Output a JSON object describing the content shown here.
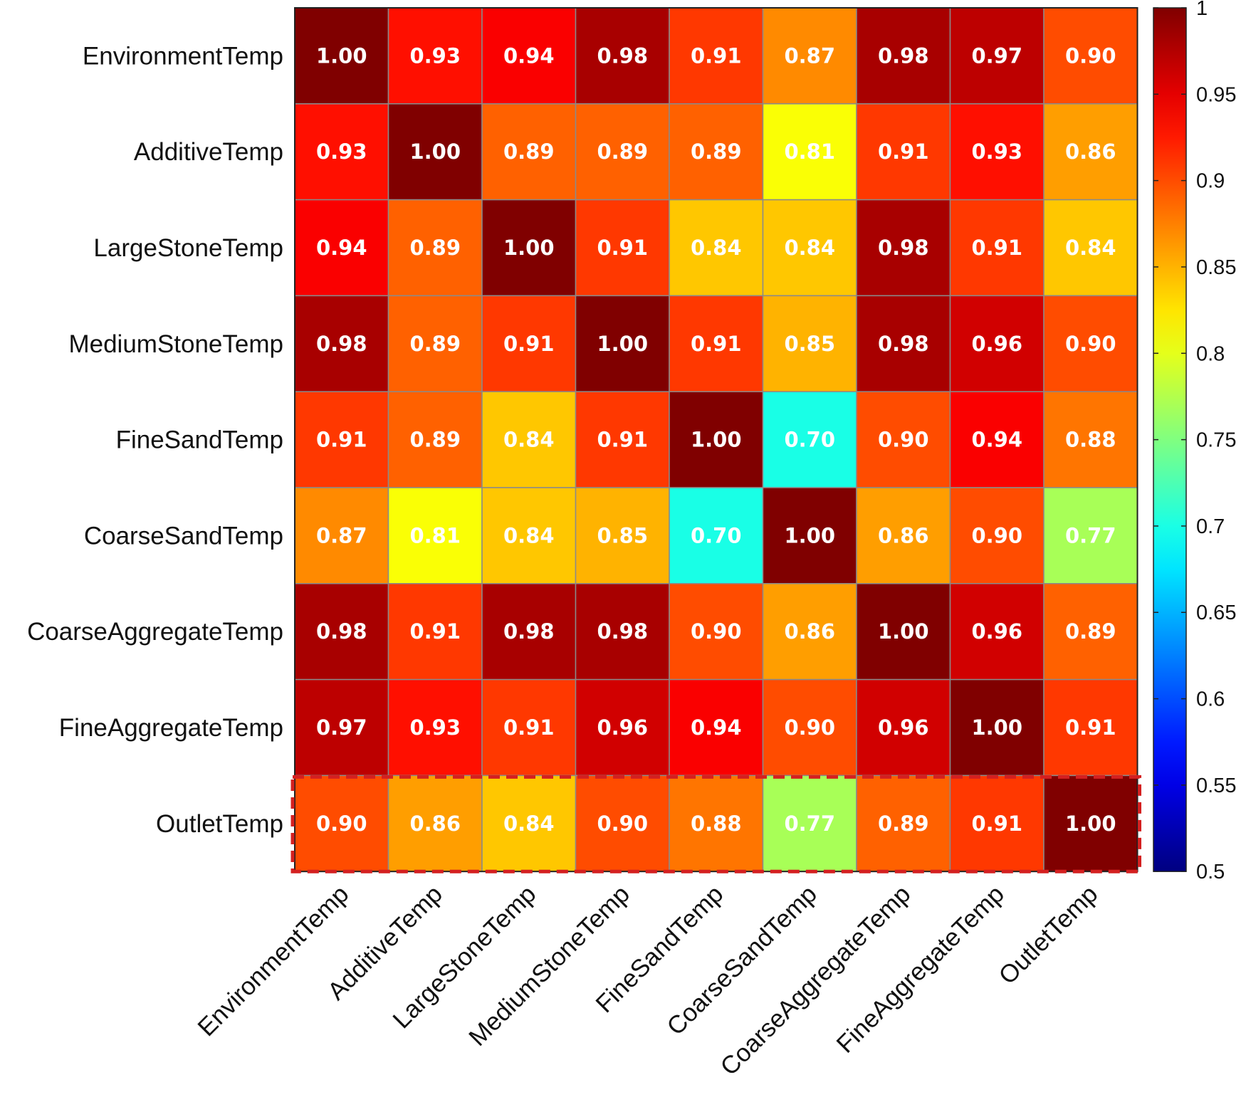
{
  "chart_data": {
    "type": "heatmap",
    "title": "",
    "xlabel": "",
    "ylabel": "",
    "labels": [
      "EnvironmentTemp",
      "AdditiveTemp",
      "LargeStoneTemp",
      "MediumStoneTemp",
      "FineSandTemp",
      "CoarseSandTemp",
      "CoarseAggregateTemp",
      "FineAggregateTemp",
      "OutletTemp"
    ],
    "values": [
      [
        1.0,
        0.93,
        0.94,
        0.98,
        0.91,
        0.87,
        0.98,
        0.97,
        0.9
      ],
      [
        0.93,
        1.0,
        0.89,
        0.89,
        0.89,
        0.81,
        0.91,
        0.93,
        0.86
      ],
      [
        0.94,
        0.89,
        1.0,
        0.91,
        0.84,
        0.84,
        0.98,
        0.91,
        0.84
      ],
      [
        0.98,
        0.89,
        0.91,
        1.0,
        0.91,
        0.85,
        0.98,
        0.96,
        0.9
      ],
      [
        0.91,
        0.89,
        0.84,
        0.91,
        1.0,
        0.7,
        0.9,
        0.94,
        0.88
      ],
      [
        0.87,
        0.81,
        0.84,
        0.85,
        0.7,
        1.0,
        0.86,
        0.9,
        0.77
      ],
      [
        0.98,
        0.91,
        0.98,
        0.98,
        0.9,
        0.86,
        1.0,
        0.96,
        0.89
      ],
      [
        0.97,
        0.93,
        0.91,
        0.96,
        0.94,
        0.9,
        0.96,
        1.0,
        0.91
      ],
      [
        0.9,
        0.86,
        0.84,
        0.9,
        0.88,
        0.77,
        0.89,
        0.91,
        1.0
      ]
    ],
    "colormap": "jet",
    "clim": [
      0.5,
      1
    ],
    "colorbar_ticks": [
      "0.5",
      "0.55",
      "0.6",
      "0.65",
      "0.7",
      "0.75",
      "0.8",
      "0.85",
      "0.9",
      "0.95",
      "1"
    ],
    "highlighted_row": "OutletTemp",
    "highlight_color": "#d42020"
  }
}
